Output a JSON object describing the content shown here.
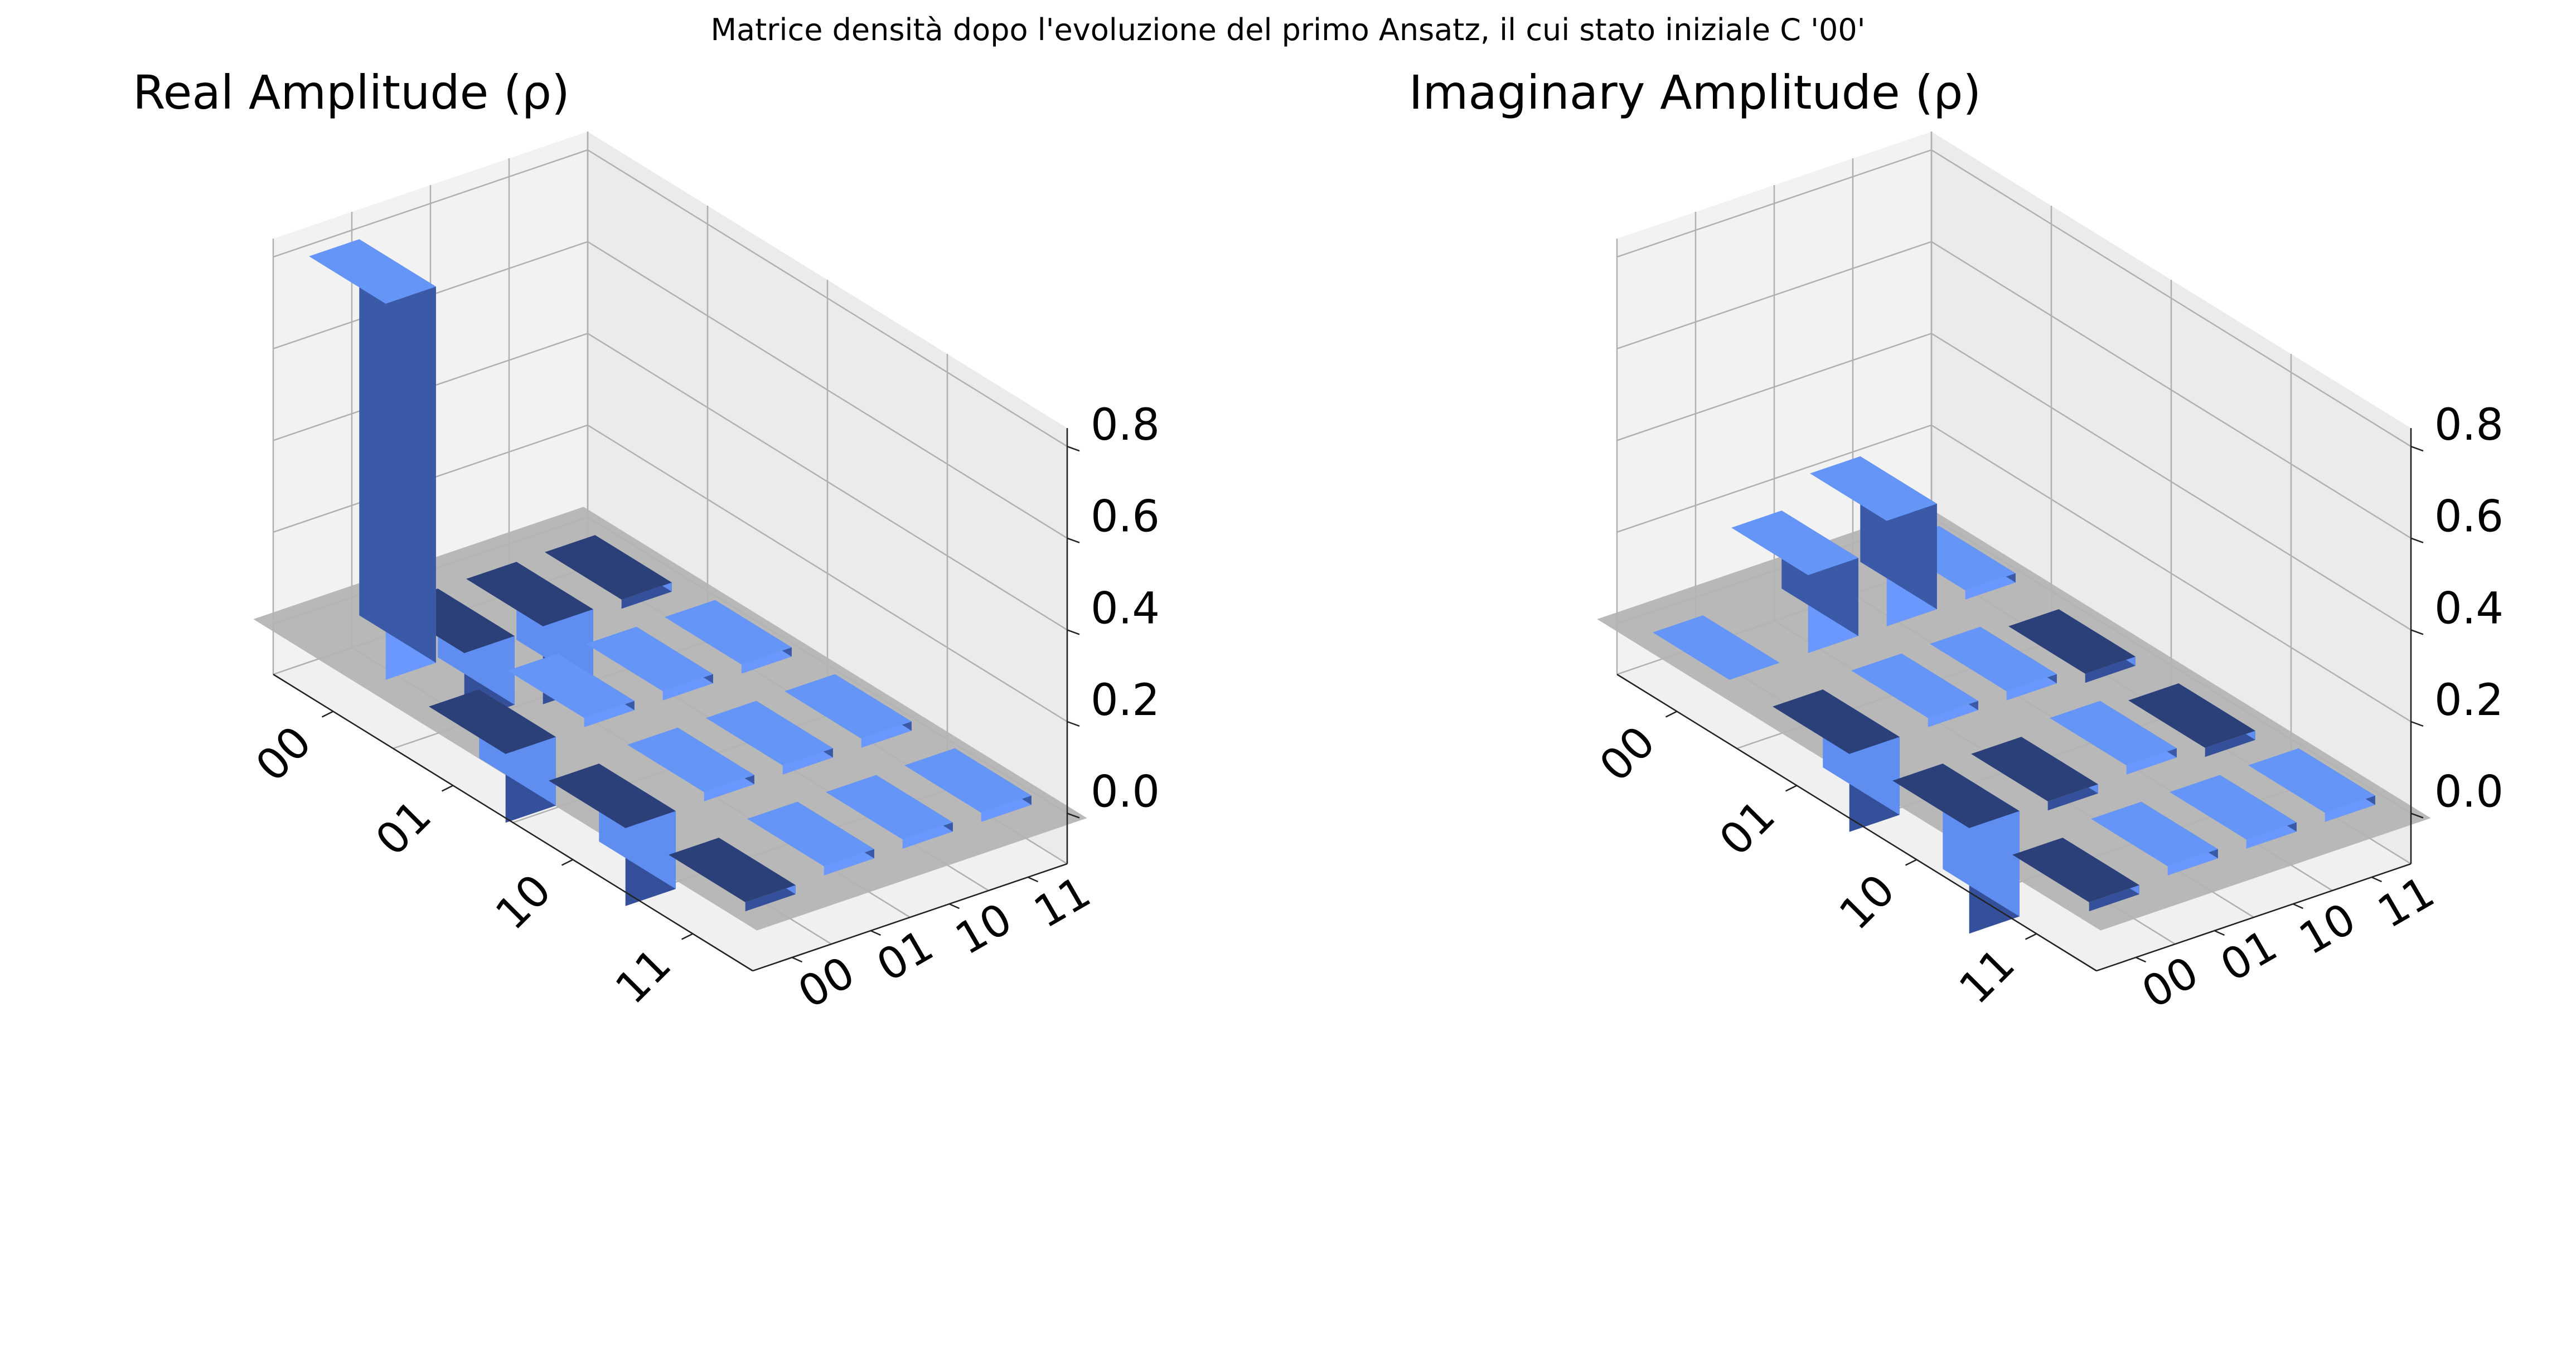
{
  "figure_title": "Matrice densità dopo l'evoluzione del primo Ansatz, il cui stato iniziale C '00'",
  "colors": {
    "positive_top": "#6495f7",
    "positive_front": "#6a98ff",
    "positive_side": "#3a5aa8",
    "negative_top": "#2b3f78",
    "negative_front": "#35509a",
    "negative_side": "#5f8ef0",
    "floor": "#b3b3b3",
    "pane_left": "#f2f2f2",
    "pane_back": "#ebebeb",
    "pane_bottom": "#f0f0f0",
    "grid": "#b0b0b0"
  },
  "chart_data": [
    {
      "type": "bar3d",
      "title": "Real Amplitude (ρ)",
      "x_tick_labels": [
        "00",
        "01",
        "10",
        "11"
      ],
      "y_tick_labels": [
        "00",
        "01",
        "10",
        "11"
      ],
      "z_tick_labels": [
        "0.0",
        "0.2",
        "0.4",
        "0.6",
        "0.8"
      ],
      "z_ticks": [
        0.0,
        0.2,
        0.4,
        0.6,
        0.8
      ],
      "zlim": [
        -0.11,
        0.84
      ],
      "grid": true,
      "matrix": [
        [
          0.82,
          -0.15,
          -0.17,
          -0.02
        ],
        [
          -0.15,
          0.02,
          0.02,
          0.02
        ],
        [
          -0.17,
          0.02,
          0.02,
          0.02
        ],
        [
          -0.02,
          0.02,
          0.02,
          0.02
        ]
      ]
    },
    {
      "type": "bar3d",
      "title": "Imaginary Amplitude (ρ)",
      "x_tick_labels": [
        "00",
        "01",
        "10",
        "11"
      ],
      "y_tick_labels": [
        "00",
        "01",
        "10",
        "11"
      ],
      "z_tick_labels": [
        "0.0",
        "0.2",
        "0.4",
        "0.6",
        "0.8"
      ],
      "z_ticks": [
        0.0,
        0.2,
        0.4,
        0.6,
        0.8
      ],
      "zlim": [
        -0.11,
        0.84
      ],
      "grid": true,
      "matrix": [
        [
          0.0,
          0.17,
          0.23,
          0.02
        ],
        [
          -0.17,
          0.02,
          0.02,
          -0.02
        ],
        [
          -0.23,
          -0.02,
          0.02,
          -0.02
        ],
        [
          -0.02,
          0.02,
          0.02,
          0.02
        ]
      ]
    }
  ]
}
